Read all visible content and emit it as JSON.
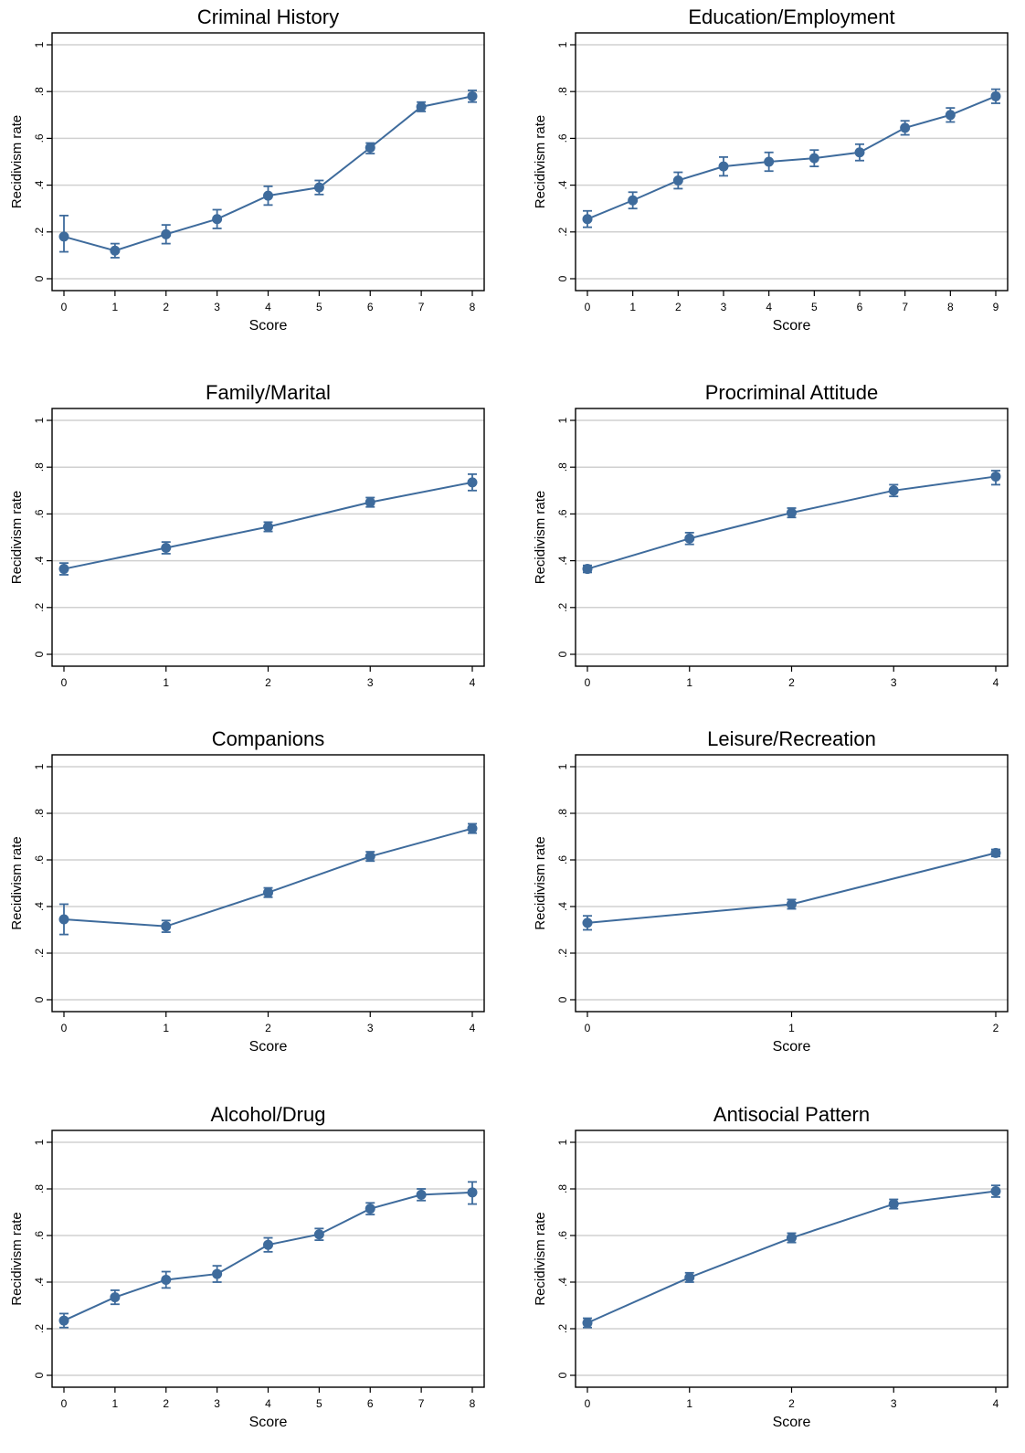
{
  "colors": {
    "series": "#3e6b9c",
    "grid": "#d0d0d0",
    "frame": "#000000"
  },
  "chart_data": [
    {
      "type": "line",
      "title": "Criminal History",
      "xlabel": "Score",
      "ylabel": "Recidivism rate",
      "ylim": [
        0,
        1
      ],
      "yticks": [
        "0",
        ".2",
        ".4",
        ".6",
        ".8",
        "1"
      ],
      "x": [
        0,
        1,
        2,
        3,
        4,
        5,
        6,
        7,
        8
      ],
      "series": [
        {
          "values": [
            0.18,
            0.12,
            0.19,
            0.255,
            0.355,
            0.39,
            0.56,
            0.735,
            0.78
          ],
          "ci_low": [
            0.115,
            0.09,
            0.15,
            0.215,
            0.315,
            0.36,
            0.535,
            0.715,
            0.755
          ],
          "ci_high": [
            0.27,
            0.15,
            0.23,
            0.295,
            0.395,
            0.42,
            0.58,
            0.755,
            0.805
          ]
        }
      ],
      "grid": true
    },
    {
      "type": "line",
      "title": "Education/Employment",
      "xlabel": "Score",
      "ylabel": "Recidivism rate",
      "ylim": [
        0,
        1
      ],
      "yticks": [
        "0",
        ".2",
        ".4",
        ".6",
        ".8",
        "1"
      ],
      "x": [
        0,
        1,
        2,
        3,
        4,
        5,
        6,
        7,
        8,
        9
      ],
      "series": [
        {
          "values": [
            0.255,
            0.335,
            0.42,
            0.48,
            0.5,
            0.515,
            0.54,
            0.645,
            0.7,
            0.78
          ],
          "ci_low": [
            0.22,
            0.3,
            0.385,
            0.44,
            0.46,
            0.48,
            0.505,
            0.615,
            0.67,
            0.75
          ],
          "ci_high": [
            0.29,
            0.37,
            0.455,
            0.52,
            0.54,
            0.55,
            0.575,
            0.675,
            0.73,
            0.81
          ]
        }
      ],
      "grid": true
    },
    {
      "type": "line",
      "title": "Family/Marital",
      "xlabel": "",
      "ylabel": "Recidivism rate",
      "ylim": [
        0,
        1
      ],
      "yticks": [
        "0",
        ".2",
        ".4",
        ".6",
        ".8",
        "1"
      ],
      "x": [
        0,
        1,
        2,
        3,
        4
      ],
      "series": [
        {
          "values": [
            0.365,
            0.455,
            0.545,
            0.65,
            0.735
          ],
          "ci_low": [
            0.34,
            0.43,
            0.525,
            0.63,
            0.7
          ],
          "ci_high": [
            0.39,
            0.48,
            0.565,
            0.67,
            0.77
          ]
        }
      ],
      "grid": true
    },
    {
      "type": "line",
      "title": "Procriminal Attitude",
      "xlabel": "",
      "ylabel": "Recidivism rate",
      "ylim": [
        0,
        1
      ],
      "yticks": [
        "0",
        ".2",
        ".4",
        ".6",
        ".8",
        "1"
      ],
      "x": [
        0,
        1,
        2,
        3,
        4
      ],
      "series": [
        {
          "values": [
            0.365,
            0.495,
            0.605,
            0.7,
            0.76
          ],
          "ci_low": [
            0.35,
            0.47,
            0.585,
            0.675,
            0.725
          ],
          "ci_high": [
            0.38,
            0.52,
            0.625,
            0.725,
            0.785
          ]
        }
      ],
      "grid": true
    },
    {
      "type": "line",
      "title": "Companions",
      "xlabel": "Score",
      "ylabel": "Recidivism rate",
      "ylim": [
        0,
        1
      ],
      "yticks": [
        "0",
        ".2",
        ".4",
        ".6",
        ".8",
        "1"
      ],
      "x": [
        0,
        1,
        2,
        3,
        4
      ],
      "series": [
        {
          "values": [
            0.345,
            0.315,
            0.46,
            0.615,
            0.735
          ],
          "ci_low": [
            0.28,
            0.29,
            0.44,
            0.595,
            0.715
          ],
          "ci_high": [
            0.41,
            0.34,
            0.48,
            0.635,
            0.755
          ]
        }
      ],
      "grid": true
    },
    {
      "type": "line",
      "title": "Leisure/Recreation",
      "xlabel": "Score",
      "ylabel": "Recidivism rate",
      "ylim": [
        0,
        1
      ],
      "yticks": [
        "0",
        ".2",
        ".4",
        ".6",
        ".8",
        "1"
      ],
      "x": [
        0,
        1,
        2
      ],
      "series": [
        {
          "values": [
            0.33,
            0.41,
            0.63
          ],
          "ci_low": [
            0.3,
            0.39,
            0.615
          ],
          "ci_high": [
            0.36,
            0.43,
            0.645
          ]
        }
      ],
      "grid": true
    },
    {
      "type": "line",
      "title": "Alcohol/Drug",
      "xlabel": "Score",
      "ylabel": "Recidivism rate",
      "ylim": [
        0,
        1
      ],
      "yticks": [
        "0",
        ".2",
        ".4",
        ".6",
        ".8",
        "1"
      ],
      "x": [
        0,
        1,
        2,
        3,
        4,
        5,
        6,
        7,
        8
      ],
      "series": [
        {
          "values": [
            0.235,
            0.335,
            0.41,
            0.435,
            0.56,
            0.605,
            0.715,
            0.775,
            0.785
          ],
          "ci_low": [
            0.205,
            0.305,
            0.375,
            0.4,
            0.53,
            0.58,
            0.69,
            0.75,
            0.735
          ],
          "ci_high": [
            0.265,
            0.365,
            0.445,
            0.47,
            0.59,
            0.63,
            0.74,
            0.8,
            0.83
          ]
        }
      ],
      "grid": true
    },
    {
      "type": "line",
      "title": "Antisocial Pattern",
      "xlabel": "Score",
      "ylabel": "Recidivism rate",
      "ylim": [
        0,
        1
      ],
      "yticks": [
        "0",
        ".2",
        ".4",
        ".6",
        ".8",
        "1"
      ],
      "x": [
        0,
        1,
        2,
        3,
        4
      ],
      "series": [
        {
          "values": [
            0.225,
            0.42,
            0.59,
            0.735,
            0.79
          ],
          "ci_low": [
            0.205,
            0.4,
            0.57,
            0.715,
            0.765
          ],
          "ci_high": [
            0.245,
            0.44,
            0.61,
            0.755,
            0.815
          ]
        }
      ],
      "grid": true
    }
  ]
}
